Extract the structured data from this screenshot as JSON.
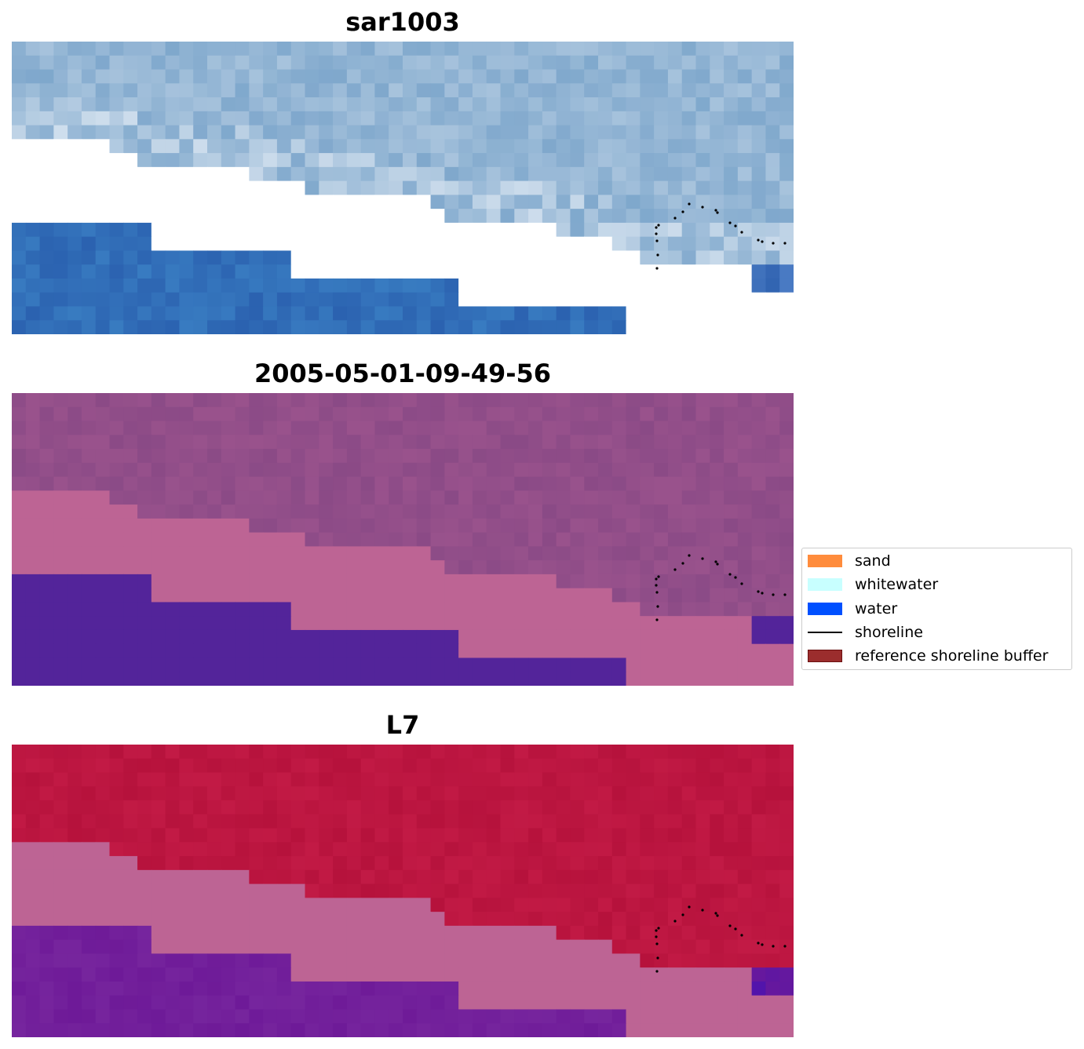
{
  "panels": [
    {
      "title": "sar1003",
      "style": "rgb"
    },
    {
      "title": "2005-05-01-09-49-56",
      "style": "classes"
    },
    {
      "title": "L7",
      "style": "ndwi"
    }
  ],
  "legend": {
    "items": [
      {
        "label": "sand",
        "kind": "patch",
        "color": "#ff8c3c"
      },
      {
        "label": "whitewater",
        "kind": "patch",
        "color": "#c8ffff"
      },
      {
        "label": "water",
        "kind": "patch",
        "color": "#0050ff"
      },
      {
        "label": "shoreline",
        "kind": "line",
        "color": "#000000"
      },
      {
        "label": "reference shoreline buffer",
        "kind": "patch",
        "color": "#9b2d2d",
        "edge": "#6b1010"
      }
    ]
  },
  "colors": {
    "no_data": "#ffffff",
    "buffer_overlay": "#bd6494",
    "water_class": "#53249a",
    "land_class": "#8a4a86",
    "ndwi_land": "#c21a45",
    "ndwi_water": "#6e1a98",
    "shoreline_points": "#000000"
  }
}
